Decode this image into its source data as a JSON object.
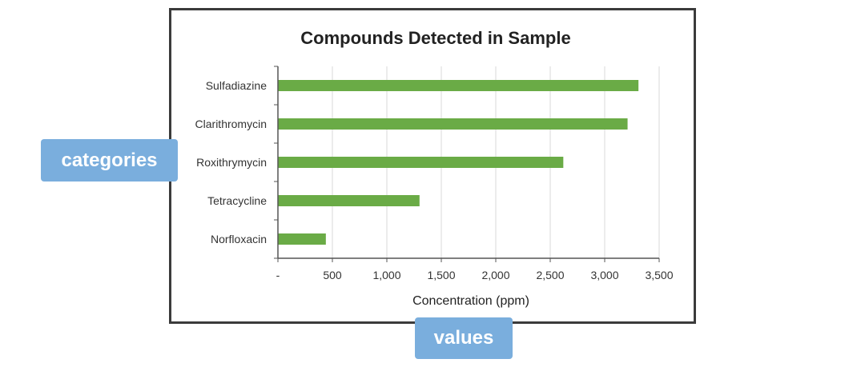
{
  "chart_data": {
    "type": "bar",
    "orientation": "horizontal",
    "title": "Compounds Detected in Sample",
    "xlabel": "Concentration (ppm)",
    "ylabel": "",
    "categories": [
      "Sulfadiazine",
      "Clarithromycin",
      "Roxithrymycin",
      "Tetracycline",
      "Norfloxacin"
    ],
    "values": [
      3310,
      3210,
      2620,
      1300,
      440
    ],
    "xlim": [
      0,
      3500
    ],
    "x_ticks": [
      0,
      500,
      1000,
      1500,
      2000,
      2500,
      3000,
      3500
    ],
    "x_tick_labels": [
      "-",
      "500",
      "1,000",
      "1,500",
      "2,000",
      "2,500",
      "3,000",
      "3,500"
    ],
    "grid": "vertical",
    "bar_color": "#6aab46"
  },
  "annotations": {
    "categories_label": "categories",
    "values_label": "values",
    "color": "#7aaedd"
  }
}
